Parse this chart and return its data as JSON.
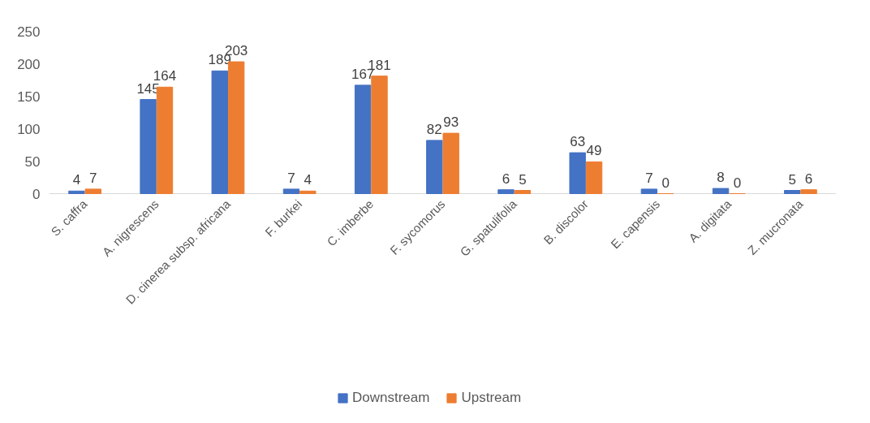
{
  "chart_data": {
    "type": "bar",
    "categories": [
      "S. caffra",
      "A. nigrescens",
      "D. cinerea subsp. africana",
      "F. burkei",
      "C. imberbe",
      "F. sycomorus",
      "G. spatulifolia",
      "B. discolor",
      "E. capensis",
      "A. digitata",
      "Z. mucronata"
    ],
    "series": [
      {
        "name": "Downstream",
        "color": "#4472c4",
        "values": [
          4,
          145,
          189,
          7,
          167,
          82,
          6,
          63,
          7,
          8,
          5
        ]
      },
      {
        "name": "Upstream",
        "color": "#ed7d31",
        "values": [
          7,
          164,
          203,
          4,
          181,
          93,
          5,
          49,
          0,
          0,
          6
        ]
      }
    ],
    "ylim": [
      0,
      250
    ],
    "yticks": [
      0,
      50,
      100,
      150,
      200,
      250
    ],
    "grid": false,
    "legend": "bottom",
    "data_labels": true
  }
}
